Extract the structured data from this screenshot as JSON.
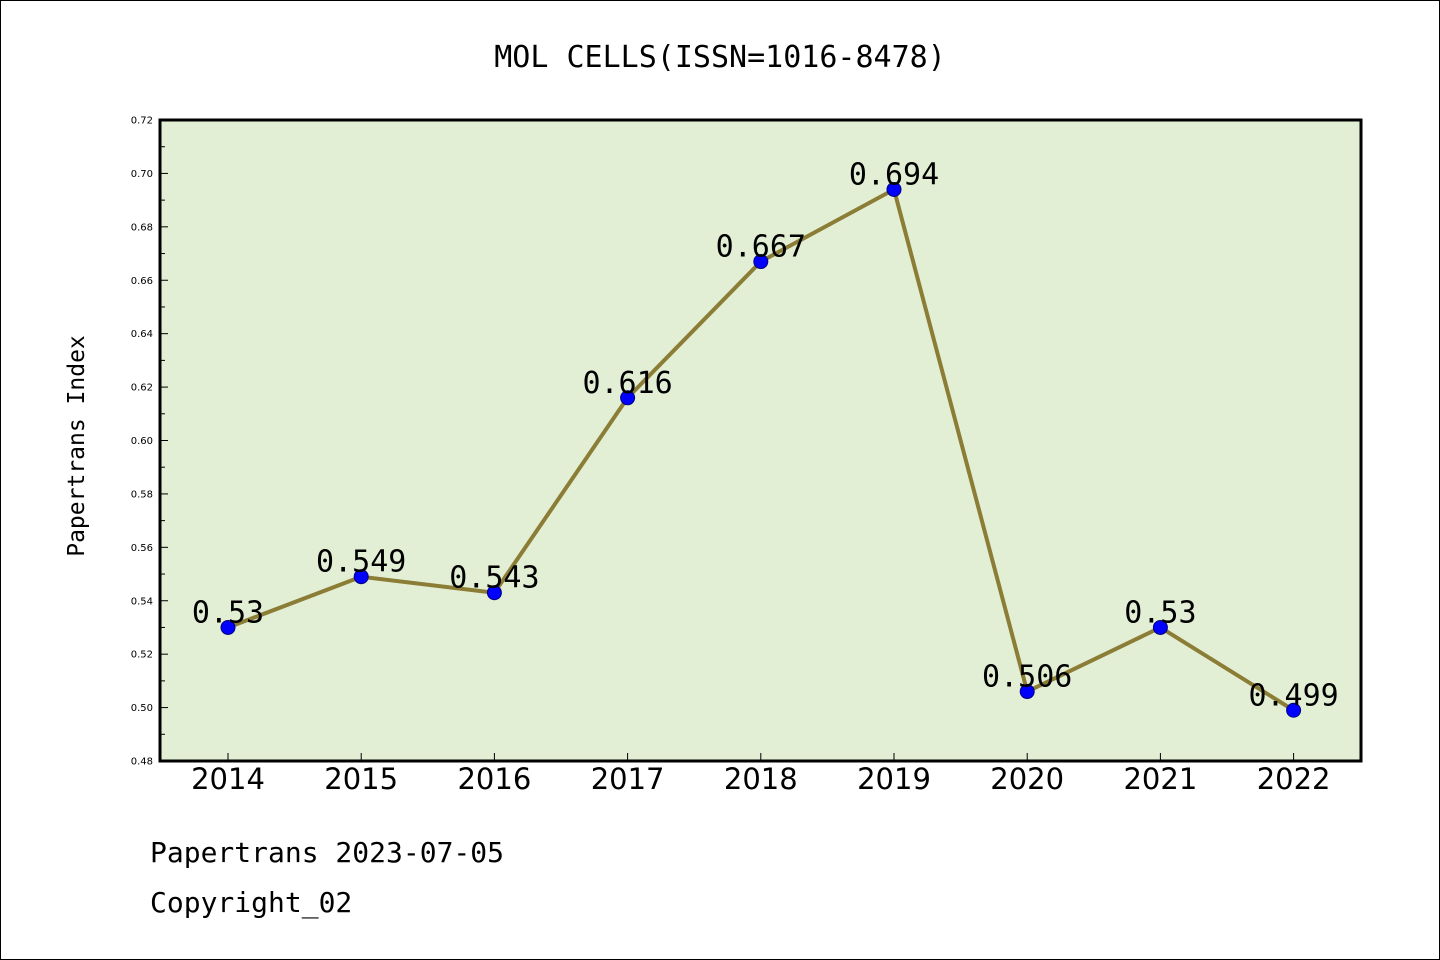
{
  "footer": {
    "line1": "Papertrans 2023-07-05",
    "line2": "Copyright_02"
  },
  "colors": {
    "plot_background": "#e2efd5",
    "line": "#8b7d35",
    "marker": "#0000ff"
  },
  "chart_data": {
    "type": "line",
    "title": "MOL CELLS(ISSN=1016-8478)",
    "xlabel": "",
    "ylabel": "Papertrans Index",
    "categories": [
      "2014",
      "2015",
      "2016",
      "2017",
      "2018",
      "2019",
      "2020",
      "2021",
      "2022"
    ],
    "series": [
      {
        "values": [
          0.53,
          0.549,
          0.543,
          0.616,
          0.667,
          0.694,
          0.506,
          0.53,
          0.499
        ],
        "labels": [
          "0.53",
          "0.549",
          "0.543",
          "0.616",
          "0.667",
          "0.694",
          "0.506",
          "0.53",
          "0.499"
        ]
      }
    ],
    "ylim": [
      0.48,
      0.72
    ],
    "yticks": [
      "0.48",
      "0.50",
      "0.52",
      "0.54",
      "0.56",
      "0.58",
      "0.60",
      "0.62",
      "0.64",
      "0.66",
      "0.68",
      "0.70",
      "0.72"
    ],
    "grid": false,
    "legend": "none"
  }
}
